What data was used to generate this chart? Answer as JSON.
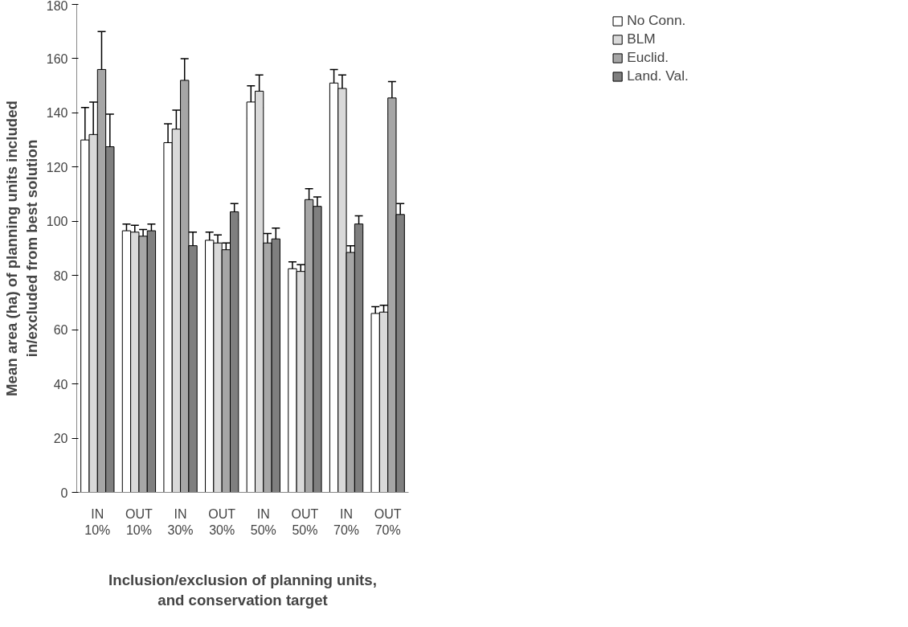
{
  "chart_data": {
    "type": "bar",
    "xlabel": "Inclusion/exclusion of planning units,\nand conservation target",
    "ylabel": "Mean area (ha) of planning units included\nin/excluded from best solution",
    "categories": [
      "IN\n10%",
      "OUT\n10%",
      "IN\n30%",
      "OUT\n30%",
      "IN\n50%",
      "OUT\n50%",
      "IN\n70%",
      "OUT\n70%"
    ],
    "series": [
      {
        "name": "No Conn.",
        "color": "#ffffff",
        "values": [
          130,
          96.5,
          129,
          93,
          144,
          82.5,
          151,
          66
        ],
        "errors": [
          12,
          2.5,
          7,
          3,
          6,
          2.5,
          5,
          2.5
        ]
      },
      {
        "name": "BLM",
        "color": "#d9d9d9",
        "values": [
          132,
          96,
          134,
          92,
          148,
          81.5,
          149,
          66.5
        ],
        "errors": [
          12,
          2.5,
          7,
          3,
          6,
          2.5,
          5,
          2.5
        ]
      },
      {
        "name": "Euclid.",
        "color": "#a6a6a6",
        "values": [
          156,
          94.5,
          152,
          89.5,
          92,
          108,
          88.5,
          145.5
        ],
        "errors": [
          14,
          2.5,
          8,
          2.5,
          3.5,
          4,
          2.5,
          6
        ]
      },
      {
        "name": "Land. Val.",
        "color": "#7f7f7f",
        "values": [
          127.5,
          96.5,
          91,
          103.5,
          93.5,
          105.5,
          99,
          102.5
        ],
        "errors": [
          12,
          2.5,
          5,
          3,
          4,
          3.5,
          3,
          4
        ]
      }
    ],
    "ylim": [
      0,
      180
    ],
    "yticks": [
      0,
      20,
      40,
      60,
      80,
      100,
      120,
      140,
      160,
      180
    ],
    "grid": false,
    "legend": "top right"
  }
}
